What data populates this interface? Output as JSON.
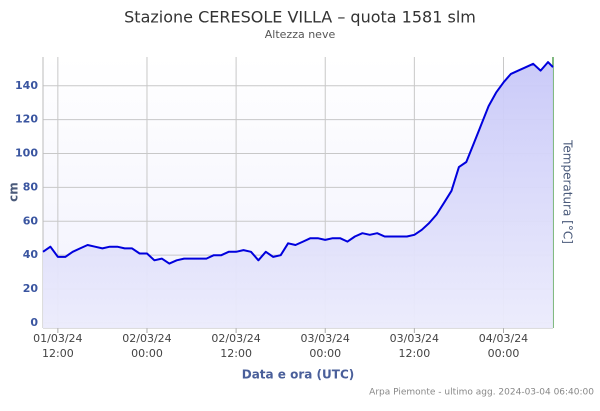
{
  "chart_data": {
    "type": "area",
    "title": "Stazione CERESOLE VILLA – quota 1581 slm",
    "subtitle": "Altezza neve",
    "y_label": "cm",
    "x_label": "Data e ora (UTC)",
    "y2_label": "Temperatura [°C]",
    "y2_color": "#2e8b2e",
    "credits": "Arpa Piemonte - ultimo agg. 2024-03-04 06:40:00",
    "color": "#0000dd",
    "grid": true,
    "ylim": [
      -3,
      157
    ],
    "yticks": [
      0,
      20,
      40,
      60,
      80,
      100,
      120,
      140
    ],
    "xlim": [
      "01/03/24 10:00",
      "04/03/24 06:40"
    ],
    "xticks": [
      {
        "value": "01/03/24 12:00",
        "label": [
          "01/03/24",
          "12:00"
        ]
      },
      {
        "value": "02/03/24 00:00",
        "label": [
          "02/03/24",
          "00:00"
        ]
      },
      {
        "value": "02/03/24 12:00",
        "label": [
          "02/03/24",
          "12:00"
        ]
      },
      {
        "value": "03/03/24 00:00",
        "label": [
          "03/03/24",
          "00:00"
        ]
      },
      {
        "value": "03/03/24 12:00",
        "label": [
          "03/03/24",
          "12:00"
        ]
      },
      {
        "value": "04/03/24 00:00",
        "label": [
          "04/03/24",
          "00:00"
        ]
      }
    ],
    "x": [
      "01/03/24 10:00",
      "01/03/24 11:00",
      "01/03/24 12:00",
      "01/03/24 13:00",
      "01/03/24 14:00",
      "01/03/24 15:00",
      "01/03/24 16:00",
      "01/03/24 17:00",
      "01/03/24 18:00",
      "01/03/24 19:00",
      "01/03/24 20:00",
      "01/03/24 21:00",
      "01/03/24 22:00",
      "01/03/24 23:00",
      "02/03/24 00:00",
      "02/03/24 01:00",
      "02/03/24 02:00",
      "02/03/24 03:00",
      "02/03/24 04:00",
      "02/03/24 05:00",
      "02/03/24 06:00",
      "02/03/24 07:00",
      "02/03/24 08:00",
      "02/03/24 09:00",
      "02/03/24 10:00",
      "02/03/24 11:00",
      "02/03/24 12:00",
      "02/03/24 13:00",
      "02/03/24 14:00",
      "02/03/24 15:00",
      "02/03/24 16:00",
      "02/03/24 17:00",
      "02/03/24 18:00",
      "02/03/24 19:00",
      "02/03/24 20:00",
      "02/03/24 21:00",
      "02/03/24 22:00",
      "02/03/24 23:00",
      "03/03/24 00:00",
      "03/03/24 01:00",
      "03/03/24 02:00",
      "03/03/24 03:00",
      "03/03/24 04:00",
      "03/03/24 05:00",
      "03/03/24 06:00",
      "03/03/24 07:00",
      "03/03/24 08:00",
      "03/03/24 09:00",
      "03/03/24 10:00",
      "03/03/24 11:00",
      "03/03/24 12:00",
      "03/03/24 13:00",
      "03/03/24 14:00",
      "03/03/24 15:00",
      "03/03/24 16:00",
      "03/03/24 17:00",
      "03/03/24 18:00",
      "03/03/24 19:00",
      "03/03/24 20:00",
      "03/03/24 21:00",
      "03/03/24 22:00",
      "03/03/24 23:00",
      "04/03/24 00:00",
      "04/03/24 01:00",
      "04/03/24 02:00",
      "04/03/24 03:00",
      "04/03/24 04:00",
      "04/03/24 05:00",
      "04/03/24 06:00",
      "04/03/24 06:40"
    ],
    "values": [
      42,
      45,
      39,
      39,
      42,
      44,
      46,
      45,
      44,
      45,
      45,
      44,
      44,
      41,
      41,
      37,
      38,
      35,
      37,
      38,
      38,
      38,
      38,
      40,
      40,
      42,
      42,
      43,
      42,
      37,
      42,
      39,
      40,
      47,
      46,
      48,
      50,
      50,
      49,
      50,
      50,
      48,
      51,
      53,
      52,
      53,
      51,
      51,
      51,
      51,
      52,
      55,
      59,
      64,
      71,
      78,
      92,
      95,
      106,
      117,
      128,
      136,
      142,
      147,
      149,
      151,
      153,
      149,
      154,
      151
    ]
  }
}
